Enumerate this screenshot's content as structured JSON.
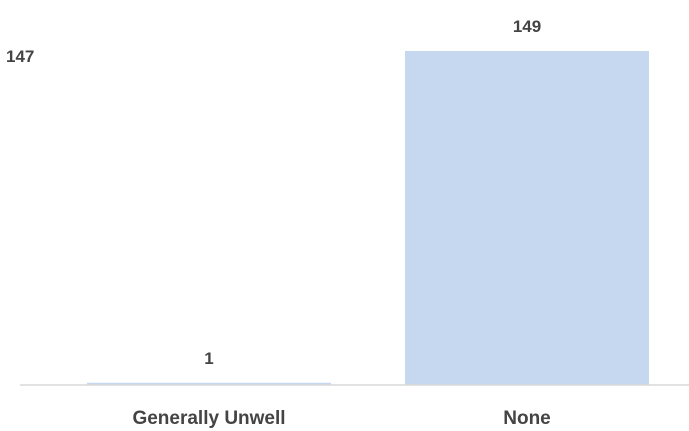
{
  "chart_data": {
    "type": "bar",
    "categories": [
      "Generally Unwell",
      "None"
    ],
    "values": [
      1,
      149
    ],
    "data_labels": [
      "1",
      "149"
    ],
    "corner_label": "147",
    "ylim": [
      0,
      149
    ],
    "grid": false,
    "bar_color": "#c5d8ef",
    "axis_color": "#d9d9d9",
    "text_color": "#444444"
  }
}
